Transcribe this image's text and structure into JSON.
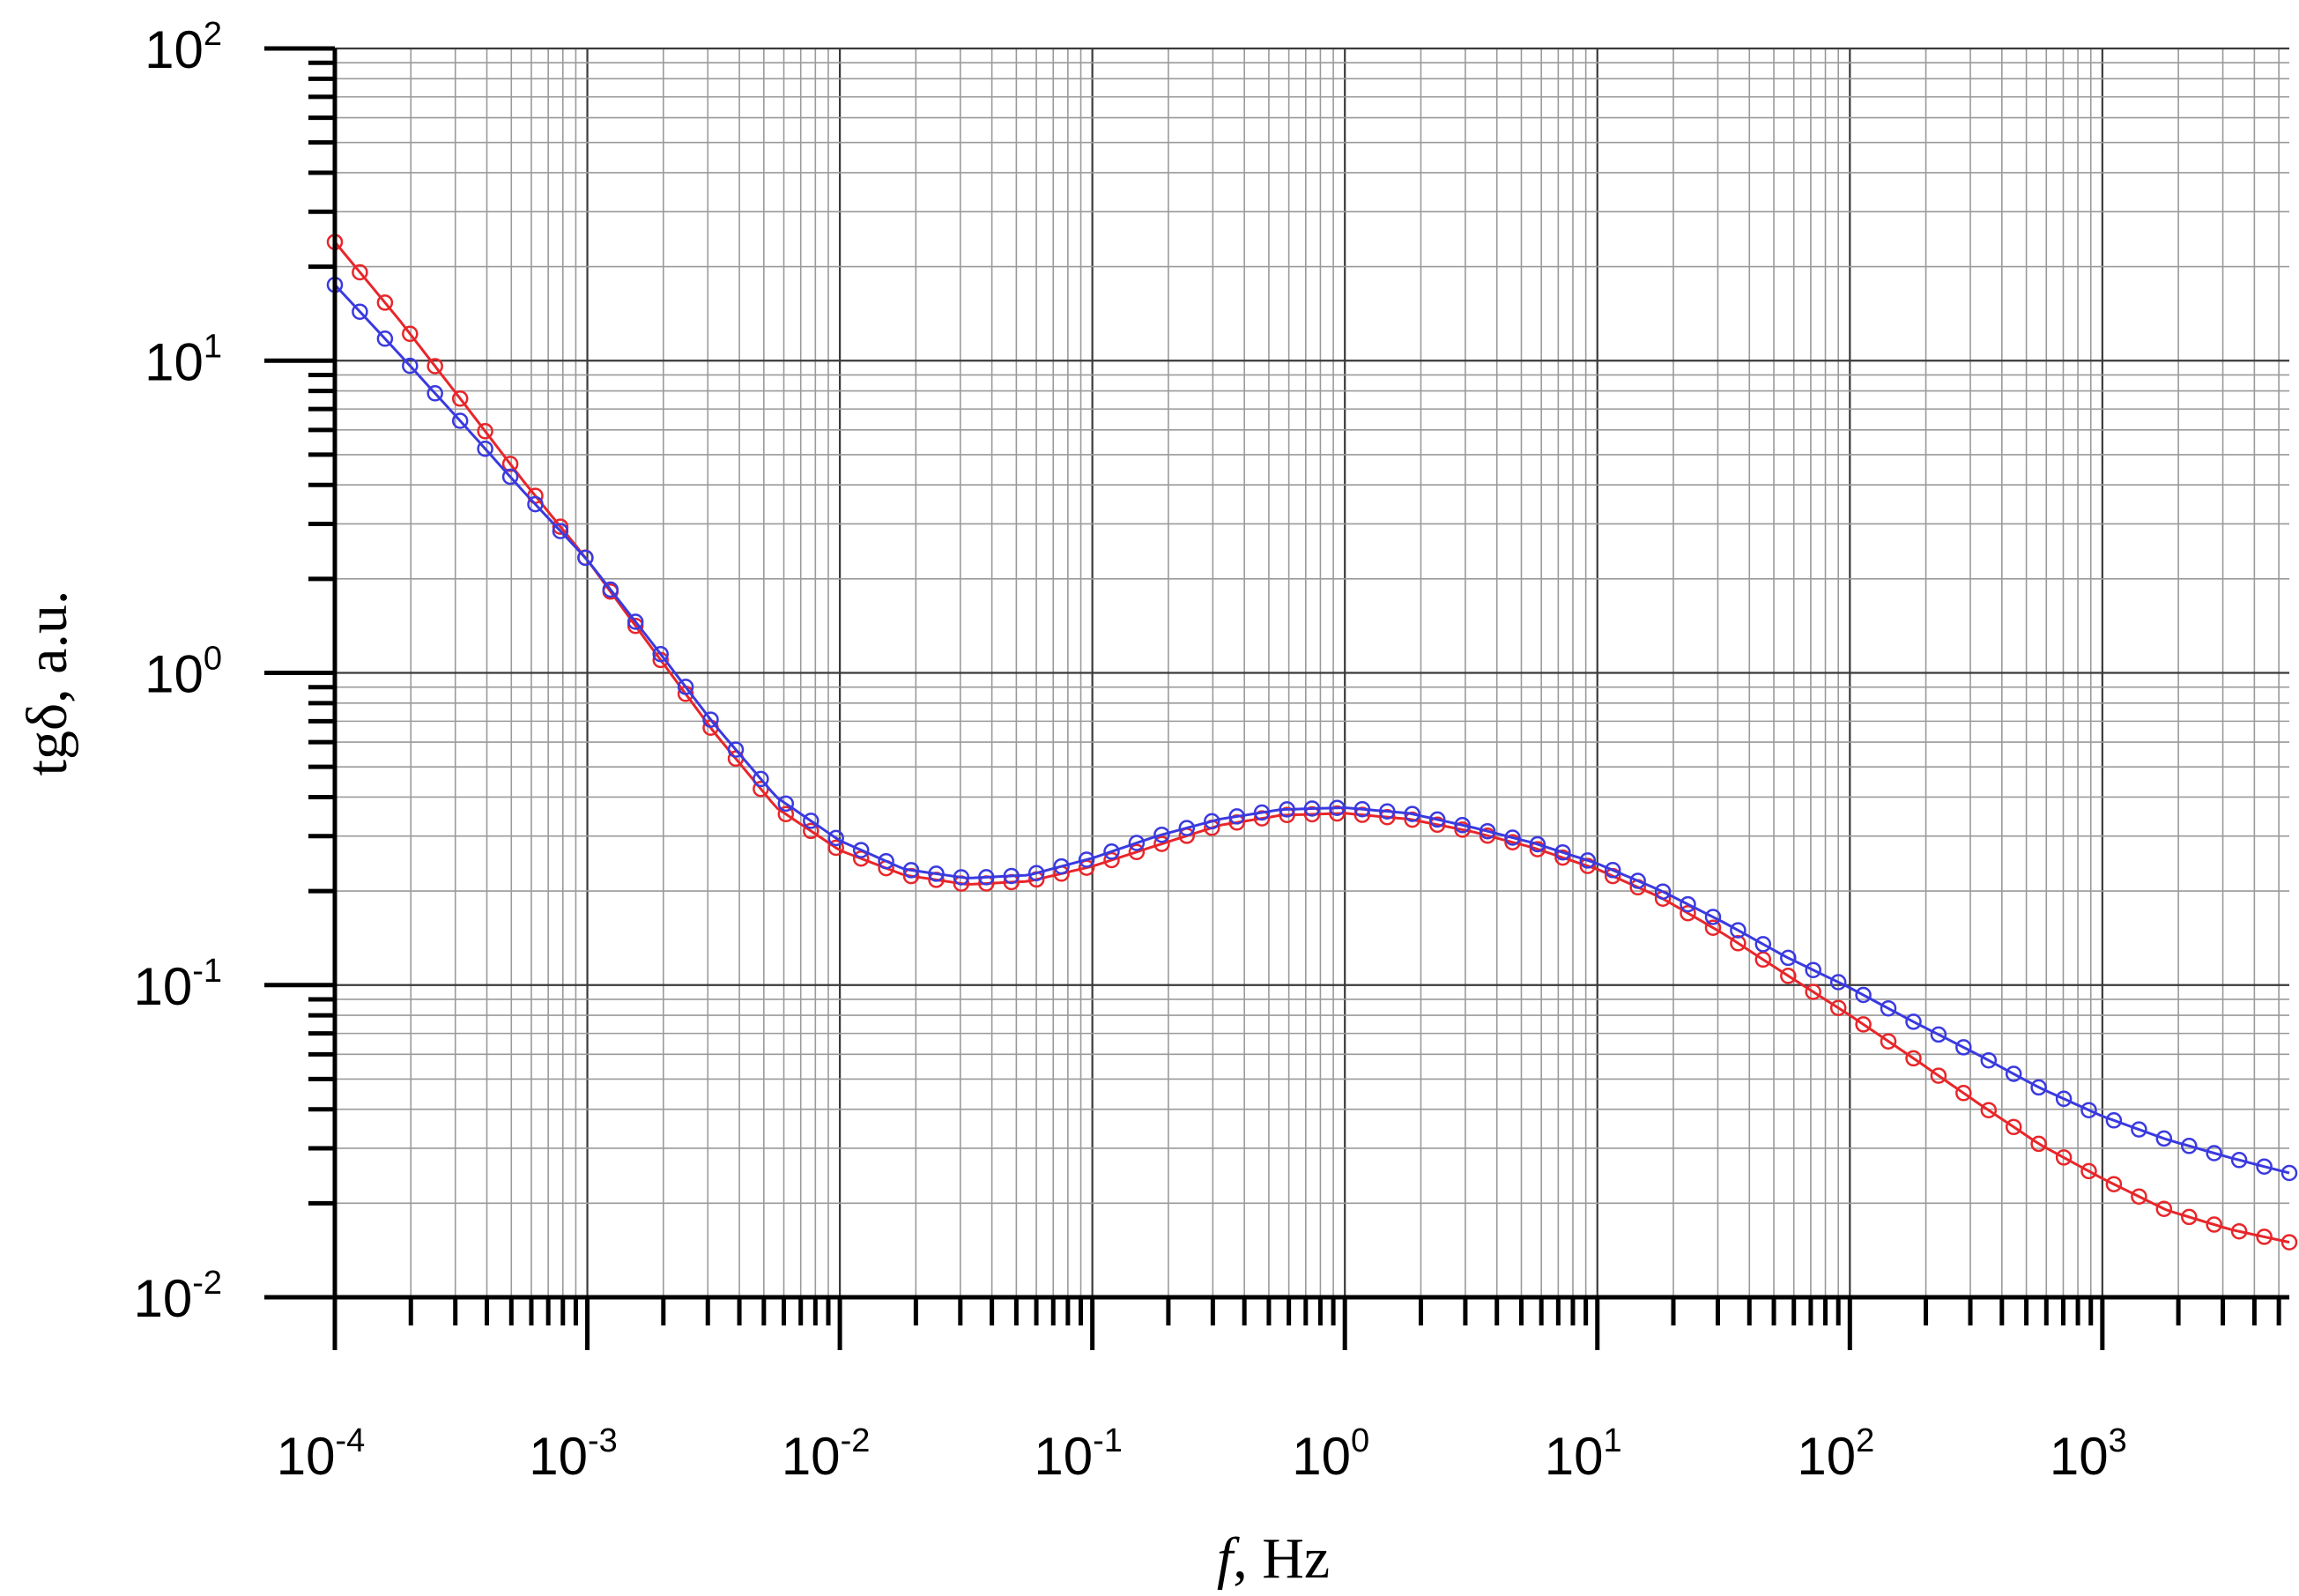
{
  "chart_data": {
    "type": "line",
    "title": "",
    "xlabel": "f, Hz",
    "xlabel_var": "f",
    "xlabel_unit": ", Hz",
    "ylabel": "tgδ, a.u.",
    "xscale": "log",
    "yscale": "log",
    "xlim": [
      0.0001,
      5500
    ],
    "ylim": [
      0.01,
      100
    ],
    "grid": true,
    "legend": "none",
    "x_ticks": [
      {
        "base": "10",
        "exp": "-4",
        "value": 0.0001
      },
      {
        "base": "10",
        "exp": "-3",
        "value": 0.001
      },
      {
        "base": "10",
        "exp": "-2",
        "value": 0.01
      },
      {
        "base": "10",
        "exp": "-1",
        "value": 0.1
      },
      {
        "base": "10",
        "exp": "0",
        "value": 1
      },
      {
        "base": "10",
        "exp": "1",
        "value": 10
      },
      {
        "base": "10",
        "exp": "2",
        "value": 100
      },
      {
        "base": "10",
        "exp": "3",
        "value": 1000
      }
    ],
    "y_ticks": [
      {
        "base": "10",
        "exp": "-2",
        "value": 0.01
      },
      {
        "base": "10",
        "exp": "-1",
        "value": 0.1
      },
      {
        "base": "10",
        "exp": "0",
        "value": 1
      },
      {
        "base": "10",
        "exp": "1",
        "value": 10
      },
      {
        "base": "10",
        "exp": "2",
        "value": 100
      }
    ],
    "series": [
      {
        "color": "#e8262a",
        "marker": "open-circle",
        "x": [
          0.0001,
          0.00018,
          0.00032,
          0.00056,
          0.001,
          0.0018,
          0.0032,
          0.0056,
          0.01,
          0.018,
          0.032,
          0.056,
          0.1,
          0.18,
          0.32,
          0.56,
          1,
          1.8,
          3.2,
          5.6,
          10,
          18,
          32,
          56,
          100,
          180,
          320,
          560,
          1000,
          1800,
          3200,
          5500
        ],
        "y": [
          24,
          13.5,
          7.4,
          4.1,
          2.3,
          1.2,
          0.64,
          0.37,
          0.27,
          0.225,
          0.21,
          0.215,
          0.24,
          0.28,
          0.325,
          0.35,
          0.355,
          0.34,
          0.31,
          0.275,
          0.235,
          0.19,
          0.145,
          0.108,
          0.08,
          0.058,
          0.042,
          0.031,
          0.024,
          0.019,
          0.0165,
          0.015
        ]
      },
      {
        "color": "#3a3ae0",
        "marker": "open-circle",
        "x": [
          0.0001,
          0.00018,
          0.00032,
          0.00056,
          0.001,
          0.0018,
          0.0032,
          0.0056,
          0.01,
          0.018,
          0.032,
          0.056,
          0.1,
          0.18,
          0.32,
          0.56,
          1,
          1.8,
          3.2,
          5.6,
          10,
          18,
          32,
          56,
          100,
          180,
          320,
          560,
          1000,
          1800,
          3200,
          5500
        ],
        "y": [
          17.5,
          10.5,
          6.3,
          3.8,
          2.3,
          1.25,
          0.68,
          0.4,
          0.29,
          0.235,
          0.22,
          0.225,
          0.255,
          0.3,
          0.34,
          0.365,
          0.37,
          0.355,
          0.32,
          0.285,
          0.245,
          0.2,
          0.158,
          0.123,
          0.098,
          0.076,
          0.06,
          0.047,
          0.038,
          0.032,
          0.028,
          0.025
        ]
      }
    ]
  }
}
